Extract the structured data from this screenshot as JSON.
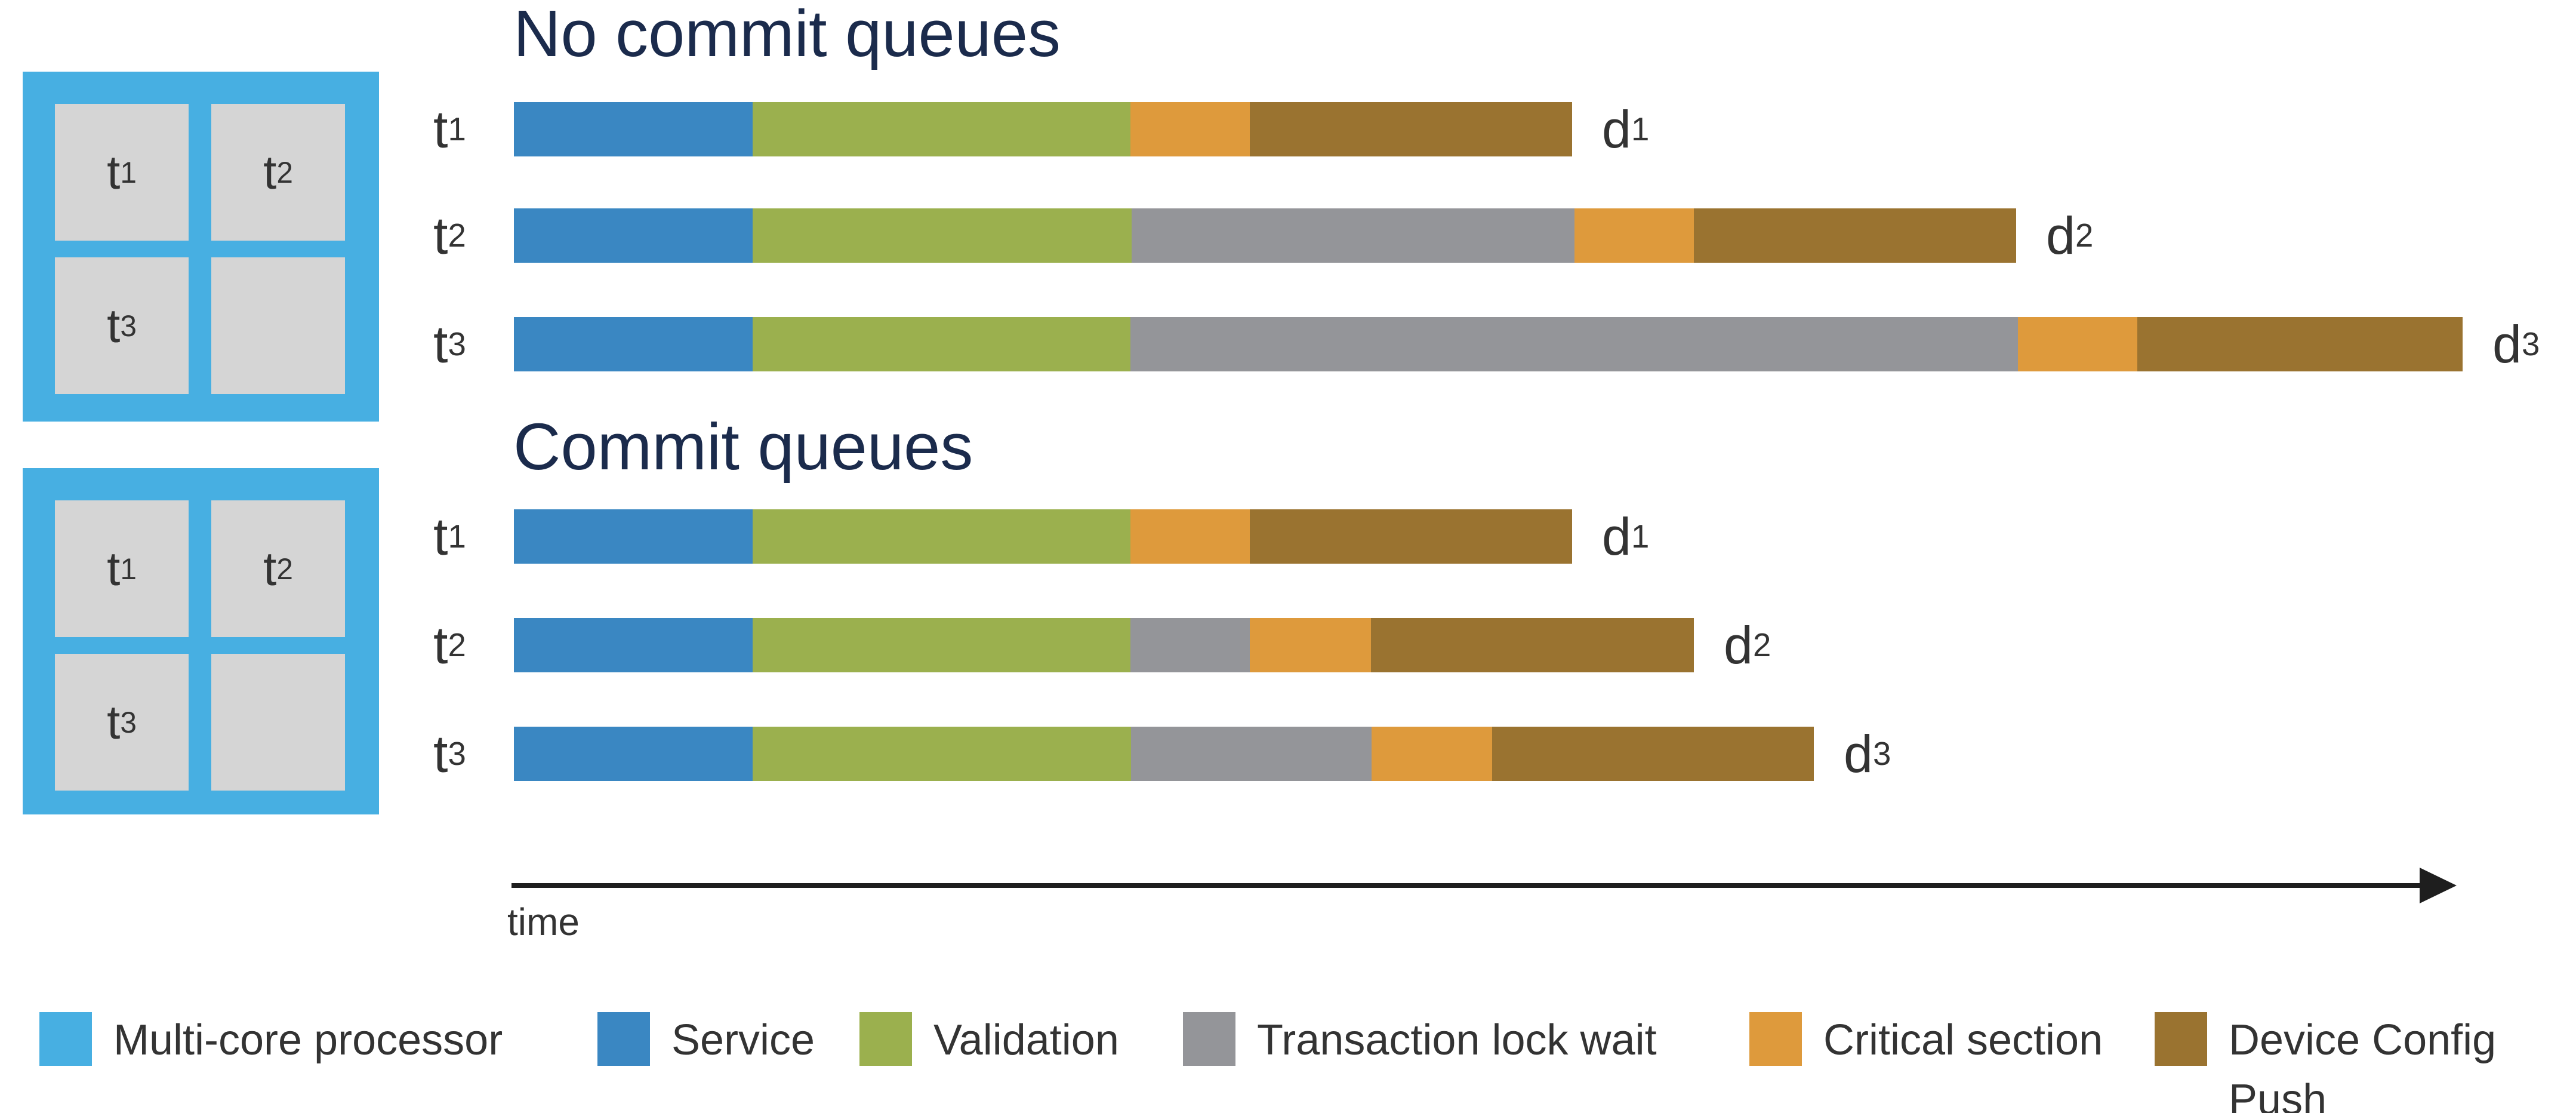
{
  "titles": {
    "section1": "No commit queues",
    "section2": "Commit queues"
  },
  "axis": {
    "label": "time",
    "style": "arrow-right",
    "ticks": "none"
  },
  "colors": {
    "multicore": "#47AFE2",
    "core_square": "#D5D5D5",
    "service": "#3A87C2",
    "validation": "#9BB04E",
    "lock": "#949599",
    "critical": "#DE9A3C",
    "push": "#9A7330",
    "title": "#1B2B4C",
    "text": "#333333",
    "axis": "#1E1E1E"
  },
  "processors": [
    {
      "name": "multi-core-processor-top",
      "cores": [
        {
          "base": "t",
          "sub": "1"
        },
        {
          "base": "t",
          "sub": "2"
        },
        {
          "base": "t",
          "sub": "3"
        },
        null
      ]
    },
    {
      "name": "multi-core-processor-bottom",
      "cores": [
        {
          "base": "t",
          "sub": "1"
        },
        {
          "base": "t",
          "sub": "2"
        },
        {
          "base": "t",
          "sub": "3"
        },
        null
      ]
    }
  ],
  "legend": {
    "items": [
      {
        "label": "Multi-core processor",
        "color": "multicore"
      },
      {
        "label": "Service",
        "color": "service"
      },
      {
        "label": "Validation",
        "color": "validation"
      },
      {
        "label": "Transaction lock wait",
        "color": "lock"
      },
      {
        "label": "Critical section",
        "color": "critical"
      },
      {
        "label": "Device Config Push",
        "color": "push",
        "wrap": true
      }
    ]
  },
  "chart_data": {
    "type": "bar",
    "subtype": "horizontal-stacked-timeline-gantt",
    "unit_note": "relative time units; 1 unit = 100 px on the time axis",
    "xlabel": "time",
    "grid": false,
    "legend_position": "bottom",
    "segment_order": [
      "service",
      "validation",
      "lock",
      "critical",
      "push"
    ],
    "segment_names": {
      "service": "Service",
      "validation": "Validation",
      "lock": "Transaction lock wait",
      "critical": "Critical section",
      "push": "Device Config Push"
    },
    "sections": [
      {
        "title": "No commit queues",
        "rows": [
          {
            "label": {
              "base": "t",
              "sub": "1"
            },
            "end_label": {
              "base": "d",
              "sub": "1"
            },
            "segments": {
              "service": 4.0,
              "validation": 6.33,
              "lock": 0,
              "critical": 2.0,
              "push": 5.4
            },
            "total": 17.73
          },
          {
            "label": {
              "base": "t",
              "sub": "2"
            },
            "end_label": {
              "base": "d",
              "sub": "2"
            },
            "segments": {
              "service": 4.0,
              "validation": 6.35,
              "lock": 7.42,
              "critical": 2.0,
              "push": 5.4
            },
            "total": 25.17
          },
          {
            "label": {
              "base": "t",
              "sub": "3"
            },
            "end_label": {
              "base": "d",
              "sub": "3"
            },
            "segments": {
              "service": 4.0,
              "validation": 6.33,
              "lock": 14.87,
              "critical": 2.0,
              "push": 5.45
            },
            "total": 32.65
          }
        ]
      },
      {
        "title": "Commit queues",
        "rows": [
          {
            "label": {
              "base": "t",
              "sub": "1"
            },
            "end_label": {
              "base": "d",
              "sub": "1"
            },
            "segments": {
              "service": 4.0,
              "validation": 6.33,
              "lock": 0,
              "critical": 2.0,
              "push": 5.4
            },
            "total": 17.73
          },
          {
            "label": {
              "base": "t",
              "sub": "2"
            },
            "end_label": {
              "base": "d",
              "sub": "2"
            },
            "segments": {
              "service": 4.0,
              "validation": 6.33,
              "lock": 2.0,
              "critical": 2.03,
              "push": 5.41
            },
            "total": 19.77
          },
          {
            "label": {
              "base": "t",
              "sub": "3"
            },
            "end_label": {
              "base": "d",
              "sub": "3"
            },
            "segments": {
              "service": 4.0,
              "validation": 6.34,
              "lock": 4.03,
              "critical": 2.02,
              "push": 5.39
            },
            "total": 21.78
          }
        ]
      }
    ]
  }
}
